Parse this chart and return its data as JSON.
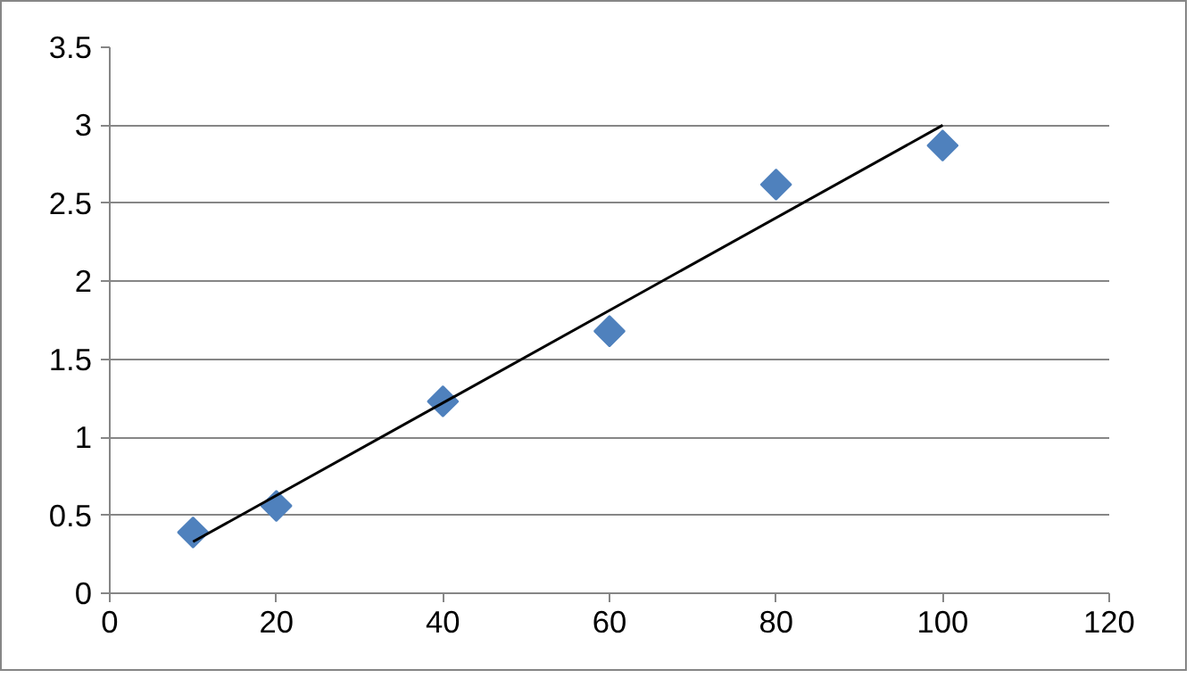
{
  "chart_data": {
    "type": "scatter",
    "xlim": [
      0,
      120
    ],
    "xticks": [
      0,
      20,
      40,
      60,
      80,
      100,
      120
    ],
    "ylim": [
      0,
      3.5
    ],
    "yticks": [
      0,
      0.5,
      1,
      1.5,
      2,
      2.5,
      3,
      3.5
    ],
    "grid": "y",
    "marker": "diamond",
    "series": [
      {
        "color": "#4f81bd",
        "x": [
          10,
          20,
          40,
          60,
          80,
          100
        ],
        "values": [
          0.39,
          0.56,
          1.23,
          1.68,
          2.62,
          2.87
        ]
      },
      {
        "type": "line",
        "color": "#000000",
        "marker": "none",
        "x": [
          10,
          100
        ],
        "values": [
          0.33,
          3.0
        ]
      }
    ]
  }
}
